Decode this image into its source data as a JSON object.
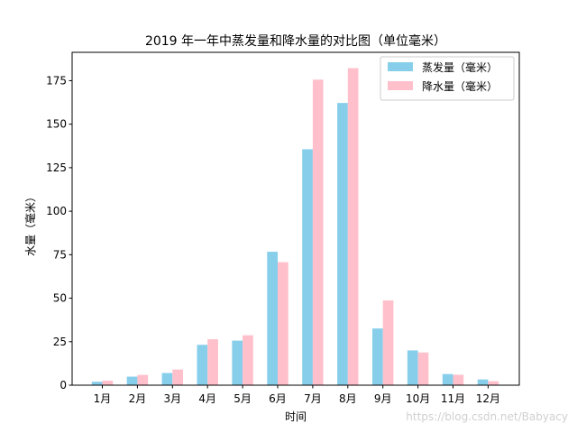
{
  "chart_data": {
    "type": "bar",
    "title": "2019 年一年中蒸发量和降水量的对比图（单位毫米）",
    "xlabel": "时间",
    "ylabel": "水量（毫米）",
    "categories": [
      "1月",
      "2月",
      "3月",
      "4月",
      "5月",
      "6月",
      "7月",
      "8月",
      "9月",
      "10月",
      "11月",
      "12月"
    ],
    "series": [
      {
        "name": "蒸发量（毫米）",
        "color": "#87ceeb",
        "values": [
          2.0,
          4.9,
          7.0,
          23.2,
          25.6,
          76.7,
          135.6,
          162.2,
          32.6,
          20.0,
          6.4,
          3.3
        ]
      },
      {
        "name": "降水量（毫米）",
        "color": "#ffc0cb",
        "values": [
          2.6,
          5.9,
          9.0,
          26.4,
          28.7,
          70.7,
          175.6,
          182.2,
          48.7,
          18.8,
          6.0,
          2.3
        ]
      }
    ],
    "ylim": [
      0,
      191.3
    ],
    "yticks": [
      "0",
      "25",
      "50",
      "75",
      "100",
      "125",
      "150",
      "175"
    ],
    "grid": false,
    "legend": "top-right"
  },
  "watermark": "https://blog.csdn.net/Babyacy"
}
